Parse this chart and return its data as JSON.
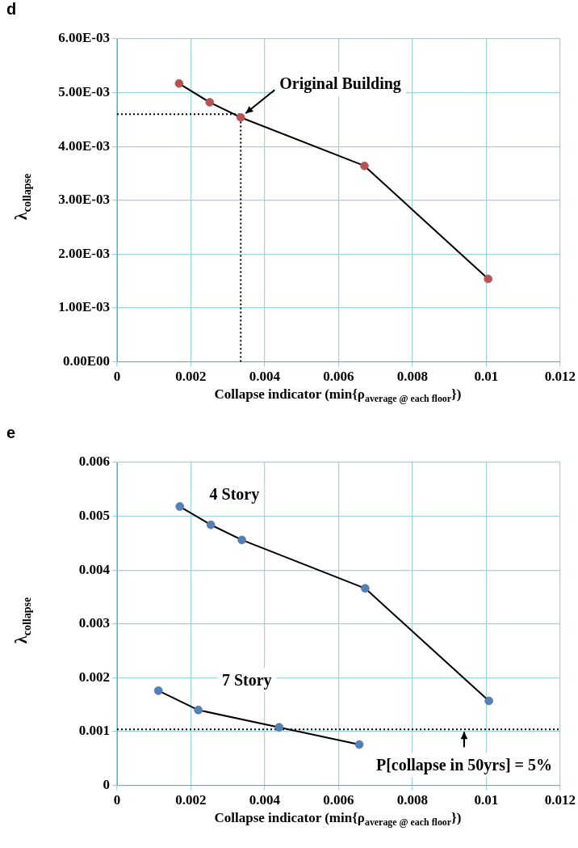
{
  "chart_data": [
    {
      "type": "line",
      "title": "d",
      "xlabel": "Collapse indicator (min{ρ$_{average @ each floor}$})",
      "ylabel": "λ$_{collapse}$",
      "series": [
        {
          "color": "#c0504d",
          "x": [
            0.00168,
            0.00251,
            0.00335,
            0.0067,
            0.01005
          ],
          "values": [
            0.00517,
            0.00482,
            0.00454,
            0.00364,
            0.00154
          ]
        }
      ],
      "xlim": [
        0,
        0.012
      ],
      "xticks": [
        0,
        0.002,
        0.004,
        0.006,
        0.008,
        0.01,
        0.012
      ],
      "ylim": [
        0,
        0.006
      ],
      "yticks": [
        {
          "value": 0,
          "label": "0.00E00"
        },
        {
          "value": 0.001,
          "label": "1.00E-03"
        },
        {
          "value": 0.002,
          "label": "2.00E-03"
        },
        {
          "value": 0.003,
          "label": "3.00E-03"
        },
        {
          "value": 0.004,
          "label": "4.00E-03"
        },
        {
          "value": 0.005,
          "label": "5.00E-03"
        },
        {
          "value": 0.006,
          "label": "6.00E-03"
        }
      ],
      "grid": true,
      "marker": "circle",
      "ref_lines": [
        {
          "axis": "x",
          "value": 0.00335,
          "line_style": "dotted",
          "color": "#000000"
        },
        {
          "axis": "y",
          "value": 0.0046,
          "line_style": "dotted",
          "color": "#000000"
        }
      ],
      "annotations": [
        {
          "text": "Original Building",
          "x": 0.00335,
          "y": 0.00454
        }
      ]
    },
    {
      "type": "line",
      "title": "e",
      "xlabel": "Collapse indicator (min{ρ$_{average @ each floor}$})",
      "ylabel": "λ$_{collapse}$",
      "series": [
        {
          "name": "4 Story",
          "color": "#4f81bd",
          "x": [
            0.0017,
            0.00254,
            0.00338,
            0.00672,
            0.01007
          ],
          "values": [
            0.00518,
            0.00484,
            0.00456,
            0.00366,
            0.00157
          ]
        },
        {
          "name": "7 Story",
          "color": "#4f81bd",
          "x": [
            0.00112,
            0.0022,
            0.00439,
            0.00656
          ],
          "values": [
            0.00176,
            0.0014,
            0.00108,
            0.00076
          ]
        }
      ],
      "xlim": [
        0,
        0.012
      ],
      "xticks": [
        0,
        0.002,
        0.004,
        0.006,
        0.008,
        0.01,
        0.012
      ],
      "ylim": [
        0,
        0.006
      ],
      "yticks": [
        0,
        0.001,
        0.002,
        0.003,
        0.004,
        0.005,
        0.006
      ],
      "grid": true,
      "marker": "circle",
      "ref_lines": [
        {
          "axis": "y",
          "value": 0.00104,
          "line_style": "dotted",
          "color": "#000000"
        }
      ],
      "annotations": [
        {
          "text": "P[collapse in 50yrs] = 5%",
          "x": 0.0094,
          "y": 0.00104
        }
      ]
    }
  ]
}
